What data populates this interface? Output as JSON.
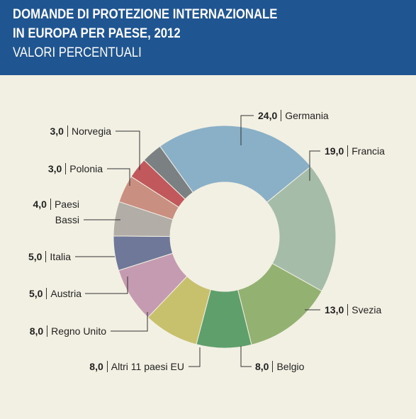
{
  "chart_data": {
    "type": "donut",
    "title": [
      "DOMANDE DI PROTEZIONE INTERNAZIONALE",
      "IN EUROPA PER PAESE, 2012"
    ],
    "subtitle": "VALORI PERCENTUALI",
    "categories": [
      "Germania",
      "Francia",
      "Svezia",
      "Belgio",
      "Altri 11 paesi EU",
      "Regno Unito",
      "Austria",
      "Italia",
      "Paesi Bassi",
      "Polonia",
      "Norvegia"
    ],
    "values": [
      24,
      19,
      13,
      8,
      8,
      8,
      5,
      5,
      4,
      3,
      3
    ],
    "value_labels": [
      "24,0",
      "19,0",
      "13,0",
      "8,0",
      "8,0",
      "8,0",
      "5,0",
      "5,0",
      "4,0",
      "3,0",
      "3,0"
    ],
    "colors": [
      "#8ab0c8",
      "#a5bca9",
      "#93b171",
      "#5f9f6b",
      "#c7c06c",
      "#c59bb1",
      "#6f7898",
      "#b2ada7",
      "#c98f81",
      "#c1585c",
      "#7b8083"
    ]
  }
}
